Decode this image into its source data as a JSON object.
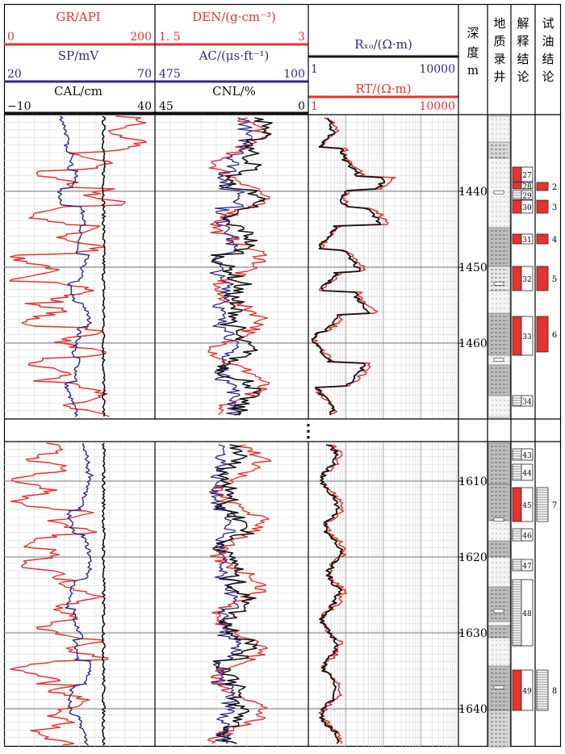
{
  "header": {
    "track1": {
      "gr": {
        "label": "GR/API",
        "min": "0",
        "max": "200"
      },
      "sp": {
        "label": "SP/mV",
        "min": "20",
        "max": "70"
      },
      "cal": {
        "label": "CAL/cm",
        "min": "−10",
        "max": "40"
      }
    },
    "track2": {
      "den": {
        "label": "DEN/(g·cm⁻³)",
        "min": "1. 5",
        "max": "3"
      },
      "ac": {
        "label": "AC/(μs·ft⁻¹)",
        "min": "475",
        "max": "100"
      },
      "cnl": {
        "label": "CNL/%",
        "min": "45",
        "max": "0"
      }
    },
    "track3": {
      "rxo": {
        "label": "Rₓₒ/(Ω·m)",
        "min": "1",
        "max": "10000"
      },
      "rt": {
        "label": "RT/(Ω·m)",
        "min": "1",
        "max": "10000"
      }
    },
    "depth_label": [
      "深",
      "度",
      "m"
    ],
    "lith_label": [
      "地",
      "质",
      "录",
      "井"
    ],
    "interp_label": [
      "解",
      "释",
      "结",
      "论"
    ],
    "test_label": [
      "试",
      "油",
      "结",
      "论"
    ]
  },
  "colors": {
    "gr": "#e8322d",
    "sp": "#2b2a8a",
    "cal": "#111111",
    "rt": "#e8322d",
    "rxo": "#111111"
  },
  "separator": "⋮",
  "chart_data": [
    {
      "type": "line",
      "panel": "upper",
      "depth_ticks": [
        "1440",
        "1450",
        "1460"
      ],
      "interp_layers": [
        "27",
        "28",
        "29",
        "30",
        "31",
        "32",
        "33",
        "34"
      ],
      "test_layers": [
        "2",
        "3",
        "4",
        "5",
        "6"
      ]
    },
    {
      "type": "line",
      "panel": "lower",
      "depth_ticks": [
        "1610",
        "1620",
        "1630",
        "1640"
      ],
      "interp_layers": [
        "43",
        "44",
        "45",
        "46",
        "47",
        "48",
        "49"
      ],
      "test_layers": [
        "7",
        "8"
      ]
    }
  ]
}
